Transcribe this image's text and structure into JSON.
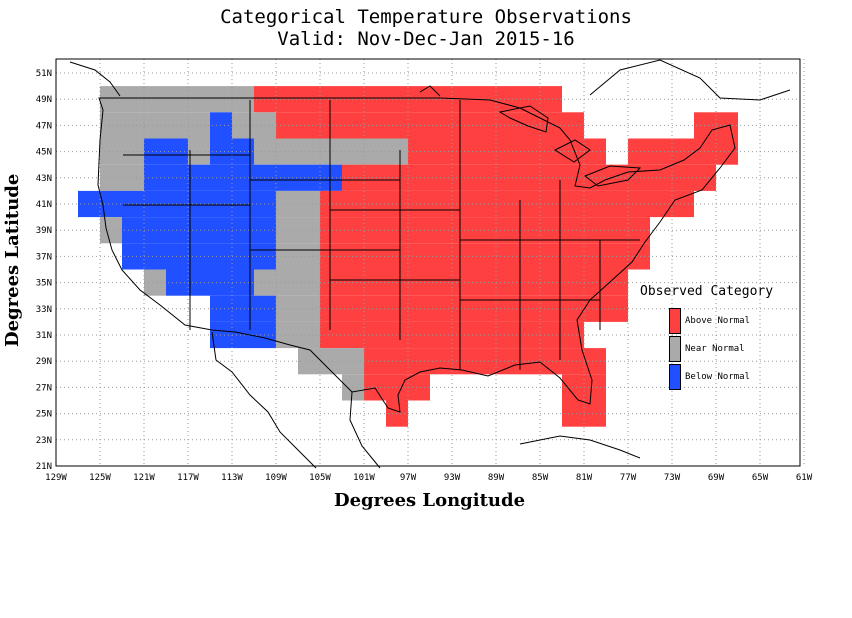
{
  "header": {
    "title": "Categorical Temperature Observations",
    "subtitle": "Valid: Nov-Dec-Jan 2015-16"
  },
  "axes": {
    "xlabel": "Degrees Longitude",
    "ylabel": "Degrees Latitude",
    "x_ticks": [
      "129W",
      "125W",
      "121W",
      "117W",
      "113W",
      "109W",
      "105W",
      "101W",
      "97W",
      "93W",
      "89W",
      "85W",
      "81W",
      "77W",
      "73W",
      "69W",
      "65W",
      "61W"
    ],
    "y_ticks": [
      "21N",
      "23N",
      "25N",
      "27N",
      "29N",
      "31N",
      "33N",
      "35N",
      "37N",
      "39N",
      "41N",
      "43N",
      "45N",
      "47N",
      "49N",
      "51N"
    ],
    "xlim": [
      -129,
      -61
    ],
    "ylim": [
      21,
      52
    ]
  },
  "legend": {
    "title": "Observed Category",
    "items": [
      {
        "label": "Above Normal",
        "color": "#ff4040"
      },
      {
        "label": "Near Normal",
        "color": "#aaaaaa"
      },
      {
        "label": "Below Normal",
        "color": "#2050ff"
      }
    ]
  },
  "colors": {
    "A": "#ff4040",
    "N": "#aaaaaa",
    "B": "#2050ff"
  },
  "chart_data": {
    "type": "heatmap",
    "cell_size_deg": 2,
    "categories": {
      "A": "Above Normal",
      "N": "Near Normal",
      "B": "Below Normal"
    },
    "rows": [
      {
        "lat": 48,
        "segs": [
          [
            -125,
            -111,
            "N"
          ],
          [
            -111,
            -97,
            "A"
          ],
          [
            -97,
            -83,
            "A"
          ]
        ]
      },
      {
        "lat": 46,
        "segs": [
          [
            -125,
            -115,
            "N"
          ],
          [
            -115,
            -113,
            "B"
          ],
          [
            -113,
            -109,
            "N"
          ],
          [
            -109,
            -107,
            "A"
          ],
          [
            -107,
            -83,
            "A"
          ],
          [
            -83,
            -81,
            "A"
          ],
          [
            -71,
            -67,
            "A"
          ]
        ]
      },
      {
        "lat": 44,
        "segs": [
          [
            -125,
            -121,
            "N"
          ],
          [
            -121,
            -117,
            "B"
          ],
          [
            -117,
            -115,
            "N"
          ],
          [
            -115,
            -111,
            "B"
          ],
          [
            -111,
            -97,
            "N"
          ],
          [
            -97,
            -79,
            "A"
          ],
          [
            -77,
            -67,
            "A"
          ]
        ]
      },
      {
        "lat": 42,
        "segs": [
          [
            -125,
            -121,
            "N"
          ],
          [
            -121,
            -111,
            "B"
          ],
          [
            -111,
            -103,
            "B"
          ],
          [
            -103,
            -75,
            "A"
          ],
          [
            -75,
            -69,
            "A"
          ]
        ]
      },
      {
        "lat": 40,
        "segs": [
          [
            -127,
            -123,
            "B"
          ],
          [
            -123,
            -109,
            "B"
          ],
          [
            -109,
            -105,
            "N"
          ],
          [
            -105,
            -71,
            "A"
          ]
        ]
      },
      {
        "lat": 38,
        "segs": [
          [
            -125,
            -123,
            "N"
          ],
          [
            -123,
            -109,
            "B"
          ],
          [
            -109,
            -105,
            "N"
          ],
          [
            -105,
            -75,
            "A"
          ]
        ]
      },
      {
        "lat": 36,
        "segs": [
          [
            -123,
            -109,
            "B"
          ],
          [
            -109,
            -105,
            "N"
          ],
          [
            -105,
            -75,
            "A"
          ]
        ]
      },
      {
        "lat": 34,
        "segs": [
          [
            -121,
            -119,
            "N"
          ],
          [
            -119,
            -111,
            "B"
          ],
          [
            -111,
            -107,
            "N"
          ],
          [
            -107,
            -105,
            "N"
          ],
          [
            -105,
            -77,
            "A"
          ]
        ]
      },
      {
        "lat": 32,
        "segs": [
          [
            -115,
            -109,
            "B"
          ],
          [
            -109,
            -105,
            "N"
          ],
          [
            -105,
            -77,
            "A"
          ]
        ]
      },
      {
        "lat": 30,
        "segs": [
          [
            -115,
            -109,
            "B"
          ],
          [
            -109,
            -105,
            "N"
          ],
          [
            -105,
            -81,
            "A"
          ]
        ]
      },
      {
        "lat": 28,
        "segs": [
          [
            -107,
            -101,
            "N"
          ],
          [
            -101,
            -95,
            "A"
          ],
          [
            -95,
            -93,
            "A"
          ],
          [
            -93,
            -83,
            "A"
          ],
          [
            -83,
            -79,
            "A"
          ]
        ]
      },
      {
        "lat": 26,
        "segs": [
          [
            -103,
            -101,
            "N"
          ],
          [
            -101,
            -99,
            "A"
          ],
          [
            -99,
            -95,
            "A"
          ],
          [
            -83,
            -79,
            "A"
          ]
        ]
      },
      {
        "lat": 24,
        "segs": [
          [
            -99,
            -97,
            "A"
          ],
          [
            -83,
            -79,
            "A"
          ]
        ]
      }
    ]
  }
}
